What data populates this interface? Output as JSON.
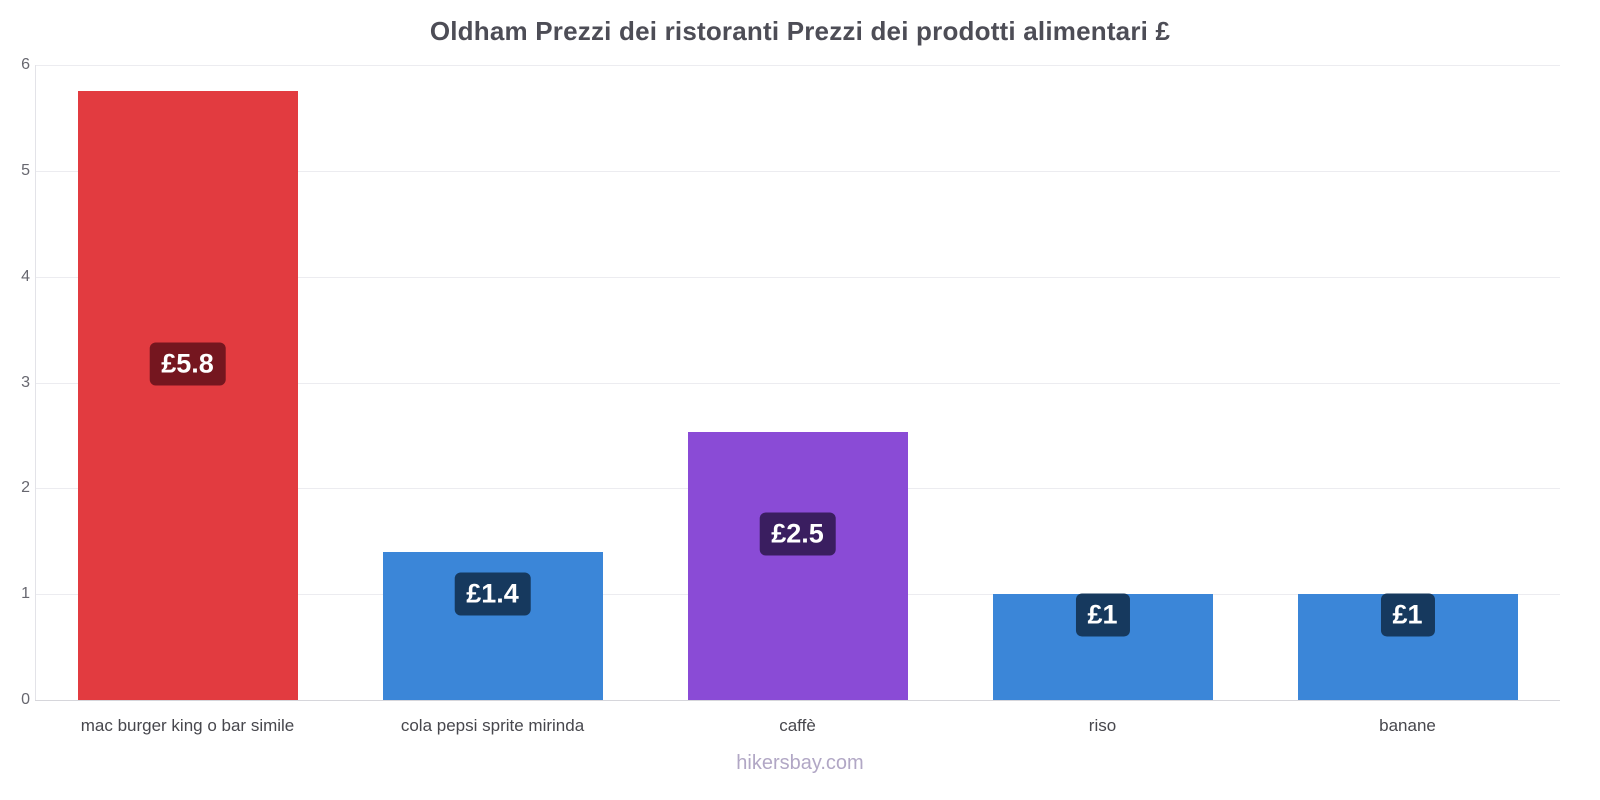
{
  "title": "Oldham Prezzi dei ristoranti Prezzi dei prodotti alimentari £",
  "footer": "hikersbay.com",
  "chart_data": {
    "type": "bar",
    "title": "Oldham Prezzi dei ristoranti Prezzi dei prodotti alimentari £",
    "categories": [
      "mac burger king o bar simile",
      "cola pepsi sprite mirinda",
      "caffè",
      "riso",
      "banane"
    ],
    "values": [
      5.75,
      1.4,
      2.53,
      1,
      1
    ],
    "labels": [
      "£5.8",
      "£1.4",
      "£2.5",
      "£1",
      "£1"
    ],
    "bar_colors": [
      "#e23b40",
      "#3b86d8",
      "#8a4bd6",
      "#3b86d8",
      "#3b86d8"
    ],
    "label_bg_colors": [
      "#75161f",
      "#16395e",
      "#3a1e60",
      "#16395e",
      "#16395e"
    ],
    "xlabel": "",
    "ylabel": "",
    "ylim": [
      0,
      6
    ],
    "yticks": [
      0,
      1,
      2,
      3,
      4,
      5,
      6
    ],
    "grid": true,
    "legend": false,
    "source_text": "hikersbay.com"
  }
}
